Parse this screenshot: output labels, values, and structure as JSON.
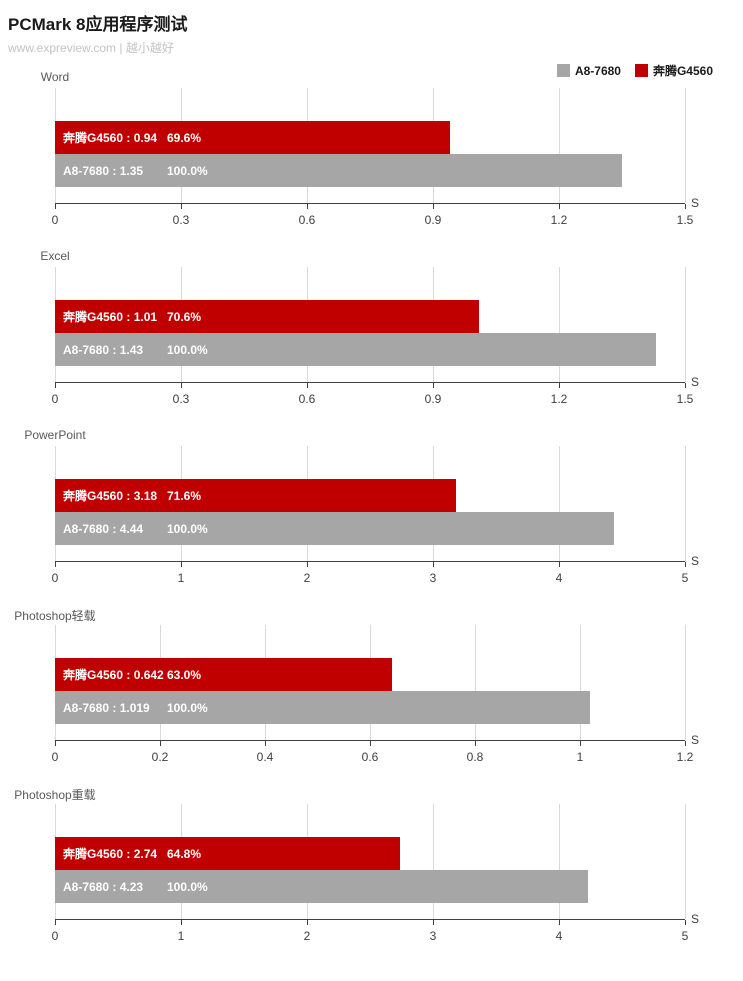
{
  "header": {
    "title": "PCMark 8应用程序测试",
    "subtitle": "www.expreview.com | 越小越好"
  },
  "legend": {
    "items": [
      {
        "label": "A8-7680",
        "color": "#a6a6a6"
      },
      {
        "label": "奔腾G4560",
        "color": "#c00000"
      }
    ]
  },
  "colors": {
    "bar_red": "#c00000",
    "bar_gray": "#a6a6a6",
    "gridline": "#d9d9d9",
    "axis": "#404040",
    "bar_text": "#ffffff",
    "panel_title": "#595959",
    "subtitle": "#c3c3c3"
  },
  "chart_data": [
    {
      "type": "bar",
      "orientation": "horizontal",
      "title": "Word",
      "axis_unit": "S",
      "xlim": [
        0,
        1.5
      ],
      "grid": true,
      "ticks": [
        {
          "label": "0",
          "value": 0
        },
        {
          "label": "0.3",
          "value": 0.3
        },
        {
          "label": "0.6",
          "value": 0.6
        },
        {
          "label": "0.9",
          "value": 0.9
        },
        {
          "label": "1.2",
          "value": 1.2
        },
        {
          "label": "1.5",
          "value": 1.5
        }
      ],
      "series": [
        {
          "name": "奔腾G4560",
          "value": 0.94,
          "bar_label": "奔腾G4560 : 0.94",
          "percent": "69.6%",
          "color": "#c00000"
        },
        {
          "name": "A8-7680",
          "value": 1.35,
          "bar_label": "A8-7680 : 1.35",
          "percent": "100.0%",
          "color": "#a6a6a6"
        }
      ]
    },
    {
      "type": "bar",
      "orientation": "horizontal",
      "title": "Excel",
      "axis_unit": "S",
      "xlim": [
        0,
        1.5
      ],
      "grid": true,
      "ticks": [
        {
          "label": "0",
          "value": 0
        },
        {
          "label": "0.3",
          "value": 0.3
        },
        {
          "label": "0.6",
          "value": 0.6
        },
        {
          "label": "0.9",
          "value": 0.9
        },
        {
          "label": "1.2",
          "value": 1.2
        },
        {
          "label": "1.5",
          "value": 1.5
        }
      ],
      "series": [
        {
          "name": "奔腾G4560",
          "value": 1.01,
          "bar_label": "奔腾G4560 : 1.01",
          "percent": "70.6%",
          "color": "#c00000"
        },
        {
          "name": "A8-7680",
          "value": 1.43,
          "bar_label": "A8-7680 : 1.43",
          "percent": "100.0%",
          "color": "#a6a6a6"
        }
      ]
    },
    {
      "type": "bar",
      "orientation": "horizontal",
      "title": "PowerPoint",
      "axis_unit": "S",
      "xlim": [
        0,
        5
      ],
      "grid": true,
      "ticks": [
        {
          "label": "0",
          "value": 0
        },
        {
          "label": "1",
          "value": 1
        },
        {
          "label": "2",
          "value": 2
        },
        {
          "label": "3",
          "value": 3
        },
        {
          "label": "4",
          "value": 4
        },
        {
          "label": "5",
          "value": 5
        }
      ],
      "series": [
        {
          "name": "奔腾G4560",
          "value": 3.18,
          "bar_label": "奔腾G4560 : 3.18",
          "percent": "71.6%",
          "color": "#c00000"
        },
        {
          "name": "A8-7680",
          "value": 4.44,
          "bar_label": "A8-7680 : 4.44",
          "percent": "100.0%",
          "color": "#a6a6a6"
        }
      ]
    },
    {
      "type": "bar",
      "orientation": "horizontal",
      "title": "Photoshop轻载",
      "axis_unit": "S",
      "xlim": [
        0,
        1.2
      ],
      "grid": true,
      "ticks": [
        {
          "label": "0",
          "value": 0
        },
        {
          "label": "0.2",
          "value": 0.2
        },
        {
          "label": "0.4",
          "value": 0.4
        },
        {
          "label": "0.6",
          "value": 0.6
        },
        {
          "label": "0.8",
          "value": 0.8
        },
        {
          "label": "1",
          "value": 1
        },
        {
          "label": "1.2",
          "value": 1.2
        }
      ],
      "series": [
        {
          "name": "奔腾G4560",
          "value": 0.642,
          "bar_label": "奔腾G4560 : 0.642",
          "percent": "63.0%",
          "color": "#c00000"
        },
        {
          "name": "A8-7680",
          "value": 1.019,
          "bar_label": "A8-7680 : 1.019",
          "percent": "100.0%",
          "color": "#a6a6a6"
        }
      ]
    },
    {
      "type": "bar",
      "orientation": "horizontal",
      "title": "Photoshop重载",
      "axis_unit": "S",
      "xlim": [
        0,
        5
      ],
      "grid": true,
      "ticks": [
        {
          "label": "0",
          "value": 0
        },
        {
          "label": "1",
          "value": 1
        },
        {
          "label": "2",
          "value": 2
        },
        {
          "label": "3",
          "value": 3
        },
        {
          "label": "4",
          "value": 4
        },
        {
          "label": "5",
          "value": 5
        }
      ],
      "series": [
        {
          "name": "奔腾G4560",
          "value": 2.74,
          "bar_label": "奔腾G4560 : 2.74",
          "percent": "64.8%",
          "color": "#c00000"
        },
        {
          "name": "A8-7680",
          "value": 4.23,
          "bar_label": "A8-7680 : 4.23",
          "percent": "100.0%",
          "color": "#a6a6a6"
        }
      ]
    }
  ]
}
